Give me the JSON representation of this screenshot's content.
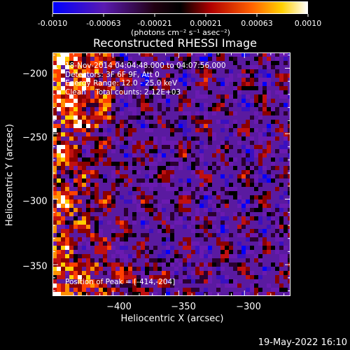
{
  "colorbar": {
    "tick_labels": [
      "-0.0010",
      "-0.00063",
      "-0.00021",
      "0.00021",
      "0.00063",
      "0.0010"
    ],
    "units_label": "(photons cm⁻² s⁻¹ asec⁻²)"
  },
  "annotations": {
    "time_range": "18-Nov-2014 04:04:48.000 to 04:07:56.000",
    "detectors": "Detectors: 3F 6F 9F, Att 0",
    "energy": "Energy Range: 12.0 - 25.0 keV",
    "clean": "Clean    Total counts: 2.12E+03",
    "peak": "Position of Peak = [-414,-204]"
  },
  "datestamp": "19-May-2022 16:10",
  "chart_data": {
    "type": "heatmap",
    "title": "Reconstructed RHESSI Image",
    "xlabel": "Heliocentric X (arcsec)",
    "ylabel": "Heliocentric Y (arcsec)",
    "xlim": [
      -446,
      -265
    ],
    "ylim": [
      -374,
      -188
    ],
    "x_ticks": [
      -400,
      -350,
      -300
    ],
    "x_tick_labels": [
      "−400",
      "−350",
      "−300"
    ],
    "y_ticks": [
      -200,
      -250,
      -300,
      -350
    ],
    "y_tick_labels": [
      "−200",
      "−250",
      "−300",
      "−350"
    ],
    "colorbar_range": [
      -0.001,
      0.001
    ],
    "colors": {
      "low": "#0000ff",
      "mid": "#000000",
      "high": "#ffffff",
      "background": "#5a1aa0"
    },
    "grid": false
  }
}
